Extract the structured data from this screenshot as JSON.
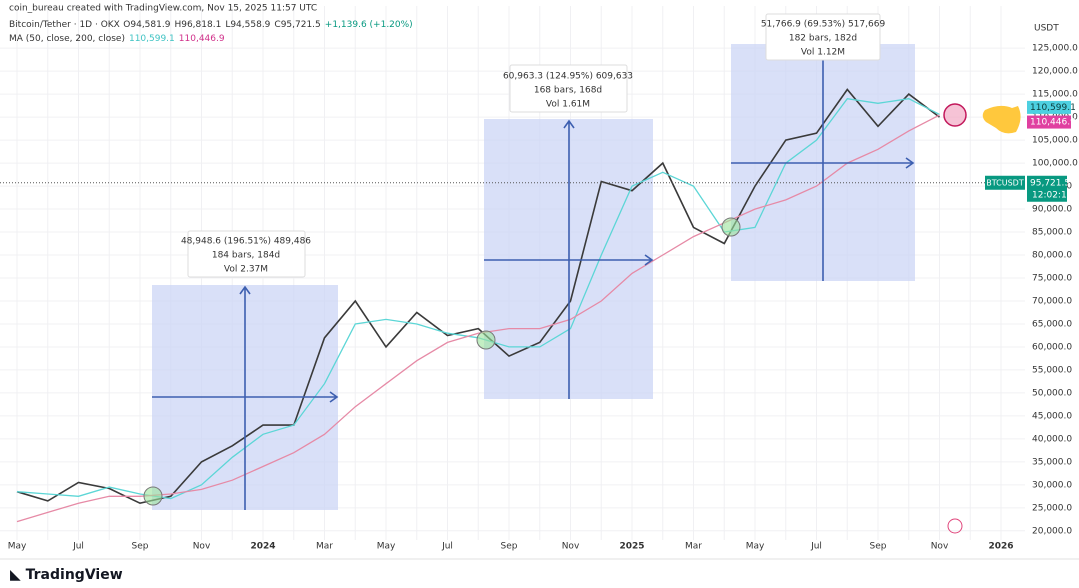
{
  "header": {
    "credit": "coin_bureau created with TradingView.com, Nov 15, 2025 11:57 UTC",
    "symbol_line": "Bitcoin/Tether · 1D · OKX",
    "ohlc": [
      "O94,581.9",
      "H96,818.1",
      "L94,558.9",
      "C95,721.5"
    ],
    "change": "+1,139.6 (+1.20%)",
    "ma_line": "MA (50, close, 200, close)",
    "ma_values": [
      "110,599.1",
      "110,446.9"
    ]
  },
  "footer": {
    "brand": "TradingView"
  },
  "measurements": [
    {
      "lines": [
        "48,948.6 (196.51%) 489,486",
        "184 bars, 184d",
        "Vol 2.37M"
      ]
    },
    {
      "lines": [
        "60,963.3 (124.95%) 609,633",
        "168 bars, 168d",
        "Vol 1.61M"
      ]
    },
    {
      "lines": [
        "51,766.9 (69.53%) 517,669",
        "182 bars, 182d",
        "Vol 1.12M"
      ]
    }
  ],
  "chart_data": {
    "type": "line",
    "currency": "USDT",
    "categories": [
      "May",
      null,
      "Jul",
      null,
      "Sep",
      null,
      "Nov",
      null,
      "2024",
      null,
      "Mar",
      null,
      "May",
      null,
      "Jul",
      null,
      "Sep",
      null,
      "Nov",
      null,
      "2025",
      null,
      "Mar",
      null,
      "May",
      null,
      "Jul",
      null,
      "Sep",
      null,
      "Nov",
      null,
      "2026"
    ],
    "series": [
      {
        "name": "BTCUSDT",
        "color": "#3a3a3a",
        "values": [
          28500,
          26500,
          30500,
          29200,
          26000,
          27500,
          35000,
          38500,
          43000,
          43000,
          62000,
          70000,
          60000,
          67500,
          62500,
          64000,
          58000,
          61000,
          70000,
          96000,
          94000,
          100000,
          86000,
          82500,
          95000,
          105000,
          106500,
          116000,
          108000,
          115000,
          110000,
          null,
          null
        ]
      },
      {
        "name": "MA 50",
        "color": "#5cd6d6",
        "values": [
          28500,
          28000,
          27500,
          29500,
          28000,
          27000,
          30000,
          36000,
          41000,
          43000,
          52000,
          65000,
          66000,
          65000,
          63000,
          62000,
          60000,
          60000,
          64000,
          80000,
          95000,
          98000,
          95000,
          85000,
          86000,
          100000,
          105000,
          114000,
          113000,
          114000,
          110599.1,
          null,
          null
        ]
      },
      {
        "name": "MA 200",
        "color": "#e68aa6",
        "values": [
          22000,
          24000,
          26000,
          27500,
          27500,
          28000,
          29000,
          31000,
          34000,
          37000,
          41000,
          47000,
          52000,
          57000,
          61000,
          63000,
          64000,
          64000,
          66000,
          70000,
          76000,
          80000,
          84000,
          87000,
          90000,
          92000,
          95000,
          100000,
          103000,
          107000,
          110446.9,
          null,
          null
        ]
      }
    ],
    "ma_tags": [
      "110,599.1",
      "110,446.9"
    ],
    "last_price": {
      "value": 95721.5,
      "label": "95,721.5"
    },
    "countdown": "12:02:15",
    "ylim": [
      18000,
      132000
    ],
    "yticks": [
      {
        "value": 20000,
        "label": "20,000.0"
      },
      {
        "value": 25000,
        "label": "25,000.0"
      },
      {
        "value": 30000,
        "label": "30,000.0"
      },
      {
        "value": 35000,
        "label": "35,000.0"
      },
      {
        "value": 40000,
        "label": "40,000.0"
      },
      {
        "value": 45000,
        "label": "45,000.0"
      },
      {
        "value": 50000,
        "label": "50,000.0"
      },
      {
        "value": 55000,
        "label": "55,000.0"
      },
      {
        "value": 60000,
        "label": "60,000.0"
      },
      {
        "value": 65000,
        "label": "65,000.0"
      },
      {
        "value": 70000,
        "label": "70,000.0"
      },
      {
        "value": 75000,
        "label": "75,000.0"
      },
      {
        "value": 80000,
        "label": "80,000.0"
      },
      {
        "value": 85000,
        "label": "85,000.0"
      },
      {
        "value": 90000,
        "label": "90,000.0"
      },
      {
        "value": 95000,
        "label": "95,000.0"
      },
      {
        "value": 100000,
        "label": "100,000.0"
      },
      {
        "value": 105000,
        "label": "105,000.0"
      },
      {
        "value": 110000,
        "label": "110,000.0"
      },
      {
        "value": 115000,
        "label": "115,000.0"
      },
      {
        "value": 120000,
        "label": "120,000.0"
      },
      {
        "value": 125000,
        "label": "125,000.0"
      }
    ],
    "grid": true
  }
}
